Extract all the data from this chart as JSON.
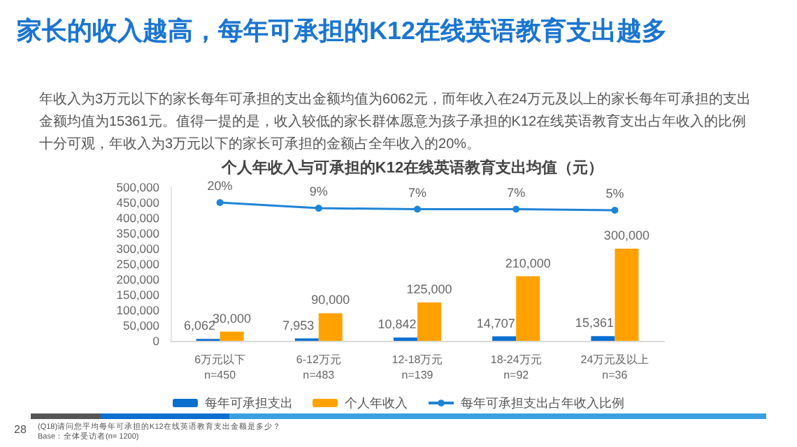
{
  "chart_data": {
    "type": "bar",
    "title": "家长的收入越高，每年可承担的K12在线英语教育支出越多",
    "subtitle": "年收入为3万元以下的家长每年可承担的支出金额均值为6062元，而年收入在24万元及以上的家长每年可承担的支出金额均值为15361元。值得一提的是，收入较低的家长群体愿意为孩子承担的K12在线英语教育支出占年收入的比例十分可观，年收入为3万元以下的家长可承担的金额占全年收入的20%。",
    "annotations": [
      "个人年收入与可承担的K12在线英语教育支出均值（元）",
      "28",
      "(Q18)请问您平均每年可承担的K12在线英语教育支出金额是多少？",
      "Base：全体受访者(n= 1200)"
    ],
    "categories": [
      "6万元以下\nn=450",
      "6-12万元\nn=483",
      "12-18万元\nn=139",
      "18-24万元\nn=92",
      "24万元及以上\nn=36"
    ],
    "series": [
      {
        "name": "每年可承担支出",
        "color": "#0b6fd0",
        "values": [
          6062,
          7953,
          10842,
          14707,
          15361
        ],
        "value_labels": [
          "6,062",
          "7,953",
          "10,842",
          "14,707",
          "15,361"
        ]
      },
      {
        "name": "个人年收入",
        "color": "#ffa200",
        "values": [
          30000,
          90000,
          125000,
          210000,
          300000
        ],
        "value_labels": [
          "30,000",
          "90,000",
          "125,000",
          "210,000",
          "300,000"
        ]
      },
      {
        "name": "每年可承担支出占年收入比例",
        "type": "line",
        "axis": "y2",
        "color": "#1f84d6",
        "values": [
          20,
          9,
          7,
          7,
          5
        ],
        "value_labels": [
          "20%",
          "9%",
          "7%",
          "7%",
          "5%"
        ]
      }
    ],
    "ylim": [
      0,
      500000
    ],
    "yticks": [
      0,
      {
        "value": 50000,
        "label": "50,000"
      },
      {
        "value": 100000,
        "label": "100,000"
      },
      {
        "value": 150000,
        "label": "150,000"
      },
      {
        "value": 200000,
        "label": "200,000"
      },
      {
        "value": 250000,
        "label": "250,000"
      },
      {
        "value": 300000,
        "label": "300,000"
      },
      {
        "value": 350000,
        "label": "350,000"
      },
      {
        "value": 400000,
        "label": "400,000"
      },
      {
        "value": 450000,
        "label": "450,000"
      },
      {
        "value": 500000,
        "label": "500,000"
      }
    ],
    "y2lim": [
      -250,
      50
    ],
    "grid": false,
    "legend": "bottom",
    "marker": "circle",
    "line_style": "solid"
  }
}
